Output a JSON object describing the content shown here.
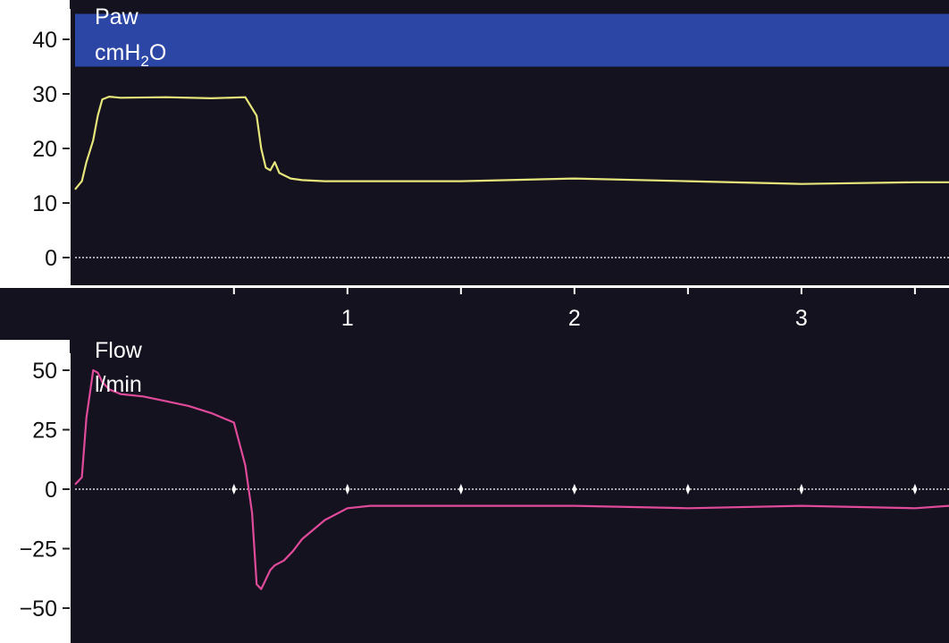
{
  "colors": {
    "plot_background": "#15121f",
    "alarm_band": "#2c46a6",
    "pressure_trace": "#e6e67a",
    "flow_trace": "#e04a9a",
    "axis": "#ffffff",
    "zero_line": "#d8d8d8"
  },
  "chart_data": [
    {
      "type": "line",
      "panel_label": "Paw",
      "unit_label": "cmH2O",
      "unit_parts": {
        "base": "cmH",
        "sub": "2",
        "tail": "O"
      },
      "y_ticks": [
        0,
        10,
        20,
        30,
        40
      ],
      "y_tick_labels": [
        "0",
        "10",
        "20",
        "30",
        "40"
      ],
      "ylim": [
        -5,
        45
      ],
      "xlim": [
        -0.2,
        3.65
      ],
      "x_ticks": [
        0.5,
        1,
        1.5,
        2,
        2.5,
        3,
        3.5
      ],
      "x_tick_labels": [
        "1",
        "2",
        "3"
      ],
      "x_labeled_ticks": [
        1,
        2,
        3
      ],
      "alarm_band": [
        35,
        45
      ],
      "zero_line": true,
      "series": [
        {
          "x": [
            -0.2,
            -0.17,
            -0.15,
            -0.12,
            -0.1,
            -0.08,
            -0.05,
            0.0,
            0.2,
            0.4,
            0.55,
            0.6,
            0.62,
            0.64,
            0.66,
            0.68,
            0.7,
            0.75,
            0.8,
            0.9,
            1.0,
            1.5,
            2.0,
            2.5,
            3.0,
            3.5,
            3.65
          ],
          "y": [
            12.5,
            14,
            17.5,
            21.5,
            26,
            29,
            29.5,
            29.3,
            29.4,
            29.2,
            29.4,
            26,
            20,
            16.5,
            16,
            17.5,
            15.5,
            14.5,
            14.2,
            14,
            14,
            14,
            14.5,
            14,
            13.5,
            13.8,
            13.8
          ]
        }
      ]
    },
    {
      "type": "line",
      "panel_label": "Flow",
      "unit_label": "l/min",
      "y_ticks": [
        -50,
        -25,
        0,
        25,
        50
      ],
      "y_tick_labels": [
        "−50",
        "−25",
        "0",
        "25",
        "50"
      ],
      "ylim": [
        -62,
        62
      ],
      "xlim": [
        -0.2,
        3.65
      ],
      "x_ticks": [
        0.5,
        1,
        1.5,
        2,
        2.5,
        3,
        3.5
      ],
      "zero_line": true,
      "series": [
        {
          "x": [
            -0.2,
            -0.17,
            -0.15,
            -0.12,
            -0.1,
            -0.08,
            -0.05,
            0.0,
            0.1,
            0.2,
            0.3,
            0.4,
            0.5,
            0.55,
            0.58,
            0.6,
            0.62,
            0.64,
            0.66,
            0.68,
            0.72,
            0.76,
            0.8,
            0.9,
            1.0,
            1.1,
            1.2,
            1.5,
            2.0,
            2.5,
            3.0,
            3.5,
            3.65
          ],
          "y": [
            2,
            5,
            30,
            50,
            49,
            45,
            42,
            40,
            39,
            37,
            35,
            32,
            28,
            10,
            -10,
            -40,
            -42,
            -38,
            -34,
            -32,
            -30,
            -26,
            -21,
            -13,
            -8,
            -7,
            -7,
            -7,
            -7,
            -8,
            -7,
            -8,
            -7
          ]
        }
      ]
    }
  ]
}
